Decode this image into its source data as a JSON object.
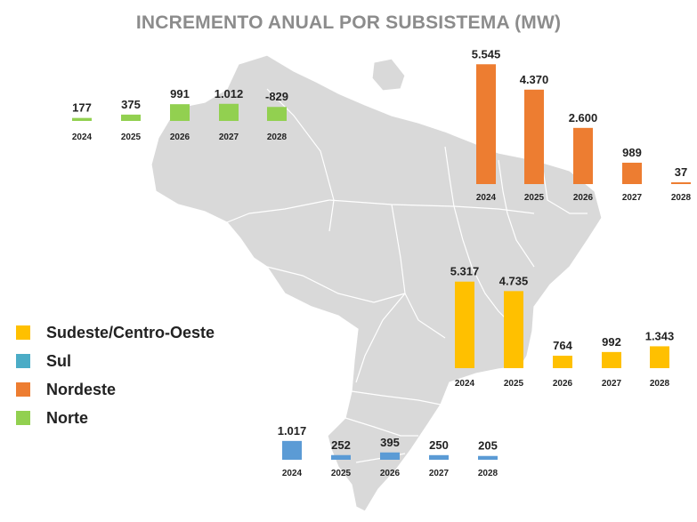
{
  "title": "INCREMENTO ANUAL POR SUBSISTEMA (MW)",
  "legend": [
    {
      "label": "Sudeste/Centro-Oeste",
      "color": "#FFC000"
    },
    {
      "label": "Sul",
      "color": "#4BACC6"
    },
    {
      "label": "Nordeste",
      "color": "#ED7D31"
    },
    {
      "label": "Norte",
      "color": "#92D050"
    }
  ],
  "chart_data": [
    {
      "type": "bar",
      "series": [
        {
          "name": "Norte",
          "values": [
            177,
            375,
            991,
            1012,
            -829
          ],
          "labels": [
            "177",
            "375",
            "991",
            "1.012",
            "-829"
          ]
        }
      ],
      "categories": [
        "2024",
        "2025",
        "2026",
        "2027",
        "2028"
      ],
      "color": "#92D050"
    },
    {
      "type": "bar",
      "series": [
        {
          "name": "Nordeste",
          "values": [
            5545,
            4370,
            2600,
            989,
            37
          ],
          "labels": [
            "5.545",
            "4.370",
            "2.600",
            "989",
            "37"
          ]
        }
      ],
      "categories": [
        "2024",
        "2025",
        "2026",
        "2027",
        "2028"
      ],
      "color": "#ED7D31"
    },
    {
      "type": "bar",
      "series": [
        {
          "name": "Sudeste/Centro-Oeste",
          "values": [
            5317,
            4735,
            764,
            992,
            1343
          ],
          "labels": [
            "5.317",
            "4.735",
            "764",
            "992",
            "1.343"
          ]
        }
      ],
      "categories": [
        "2024",
        "2025",
        "2026",
        "2027",
        "2028"
      ],
      "color": "#FFC000"
    },
    {
      "type": "bar",
      "series": [
        {
          "name": "Sul",
          "values": [
            1017,
            252,
            395,
            250,
            205
          ],
          "labels": [
            "1.017",
            "252",
            "395",
            "250",
            "205"
          ]
        }
      ],
      "categories": [
        "2024",
        "2025",
        "2026",
        "2027",
        "2028"
      ],
      "color": "#5B9BD5"
    }
  ]
}
